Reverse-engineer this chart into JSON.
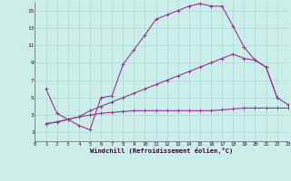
{
  "background_color": "#cceee8",
  "line_color": "#993399",
  "xlabel": "Windchill (Refroidissement éolien,°C)",
  "xlim": [
    0,
    23
  ],
  "ylim": [
    0,
    16
  ],
  "yticks": [
    1,
    3,
    5,
    7,
    9,
    11,
    13,
    15
  ],
  "xticks": [
    0,
    1,
    2,
    3,
    4,
    5,
    6,
    7,
    8,
    9,
    10,
    11,
    12,
    13,
    14,
    15,
    16,
    17,
    18,
    19,
    20,
    21,
    22,
    23
  ],
  "grid_color": "#aadddd",
  "line1_x": [
    1,
    2,
    3,
    4,
    5,
    6,
    7,
    8,
    9,
    10,
    11,
    12,
    13,
    14,
    15,
    16,
    17,
    18,
    19,
    20,
    21,
    22
  ],
  "line1_y": [
    6.0,
    3.2,
    2.5,
    1.8,
    1.3,
    5.0,
    5.2,
    8.8,
    10.5,
    12.2,
    14.0,
    14.5,
    15.0,
    15.5,
    15.8,
    15.5,
    15.5,
    13.2,
    10.8,
    9.3,
    8.5,
    5.0
  ],
  "line2_x": [
    1,
    2,
    3,
    4,
    5,
    6,
    7,
    8,
    9,
    10,
    11,
    12,
    13,
    14,
    15,
    16,
    17,
    18,
    19,
    20,
    21,
    22,
    23
  ],
  "line2_y": [
    2.0,
    2.2,
    2.5,
    2.8,
    3.5,
    4.0,
    4.5,
    5.0,
    5.5,
    6.0,
    6.5,
    7.0,
    7.5,
    8.0,
    8.5,
    9.0,
    9.5,
    10.0,
    9.5,
    9.3,
    8.5,
    5.0,
    4.2
  ],
  "line3_x": [
    1,
    2,
    3,
    4,
    5,
    6,
    7,
    8,
    9,
    10,
    11,
    12,
    13,
    14,
    15,
    16,
    17,
    18,
    19,
    20,
    21,
    22,
    23
  ],
  "line3_y": [
    2.0,
    2.2,
    2.5,
    2.8,
    3.0,
    3.2,
    3.3,
    3.4,
    3.5,
    3.5,
    3.5,
    3.5,
    3.5,
    3.5,
    3.5,
    3.5,
    3.6,
    3.7,
    3.8,
    3.8,
    3.8,
    3.8,
    3.8
  ]
}
